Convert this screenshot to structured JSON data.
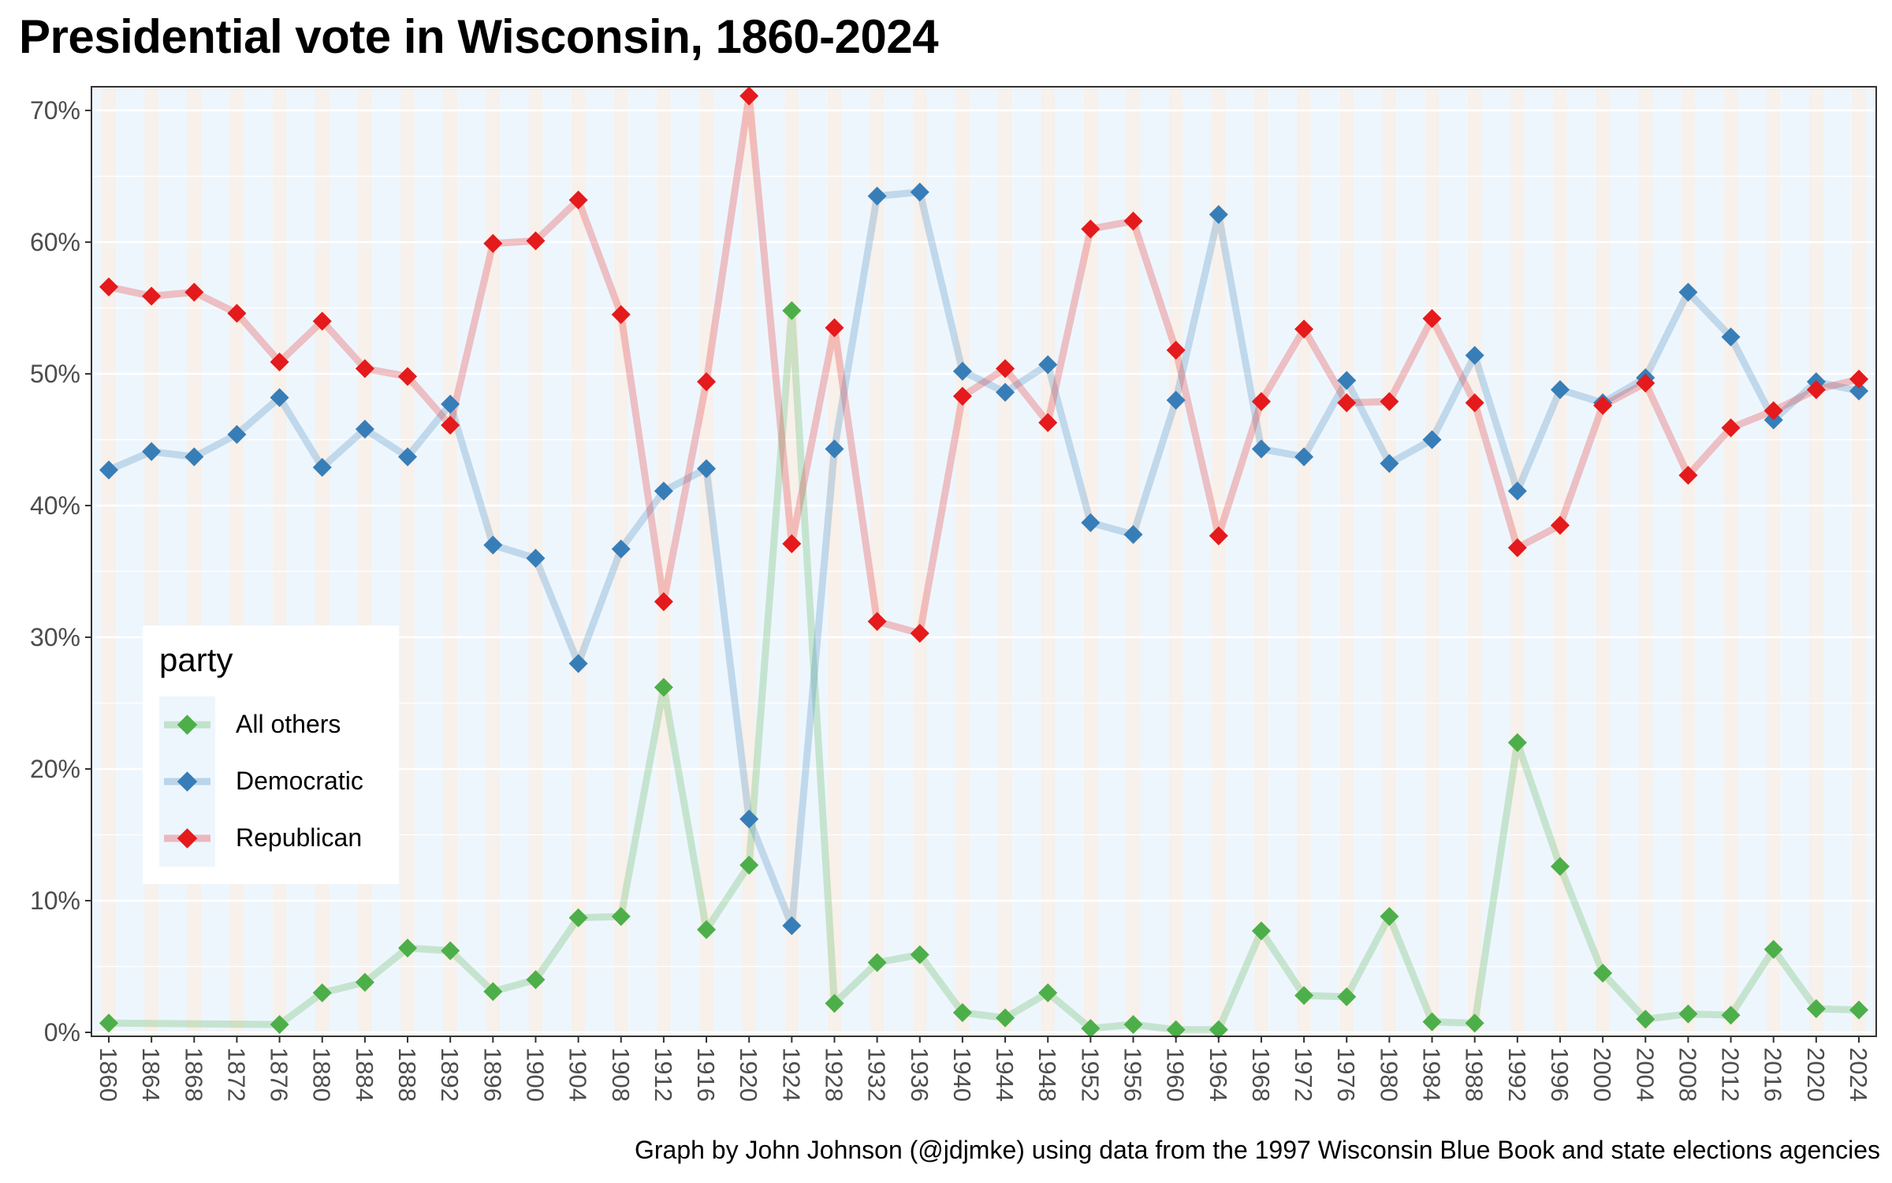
{
  "chart_data": {
    "type": "line",
    "title": "Presidential vote in Wisconsin, 1860-2024",
    "caption": "Graph by John Johnson (@jdjmke) using data from the 1997 Wisconsin Blue Book and state elections agencies",
    "xlabel": "",
    "ylabel": "",
    "x": [
      1860,
      1864,
      1868,
      1872,
      1876,
      1880,
      1884,
      1888,
      1892,
      1896,
      1900,
      1904,
      1908,
      1912,
      1916,
      1920,
      1924,
      1928,
      1932,
      1936,
      1940,
      1944,
      1948,
      1952,
      1956,
      1960,
      1964,
      1968,
      1972,
      1976,
      1980,
      1984,
      1988,
      1992,
      1996,
      2000,
      2004,
      2008,
      2012,
      2016,
      2020,
      2024
    ],
    "x_ticks": [
      "1860",
      "1864",
      "1868",
      "1872",
      "1876",
      "1880",
      "1884",
      "1888",
      "1892",
      "1896",
      "1900",
      "1904",
      "1908",
      "1912",
      "1916",
      "1920",
      "1924",
      "1928",
      "1932",
      "1936",
      "1940",
      "1944",
      "1948",
      "1952",
      "1956",
      "1960",
      "1964",
      "1968",
      "1972",
      "1976",
      "1980",
      "1984",
      "1988",
      "1992",
      "1996",
      "2000",
      "2004",
      "2008",
      "2012",
      "2016",
      "2020",
      "2024"
    ],
    "y_ticks": [
      "0%",
      "10%",
      "20%",
      "30%",
      "40%",
      "50%",
      "60%",
      "70%"
    ],
    "ylim": [
      0,
      71.2
    ],
    "grid": true,
    "legend": {
      "title": "party",
      "placement": "bottom-left"
    },
    "series": [
      {
        "name": "All others",
        "color": "#4daf4a",
        "points": [
          [
            1860,
            0.7
          ],
          [
            1876,
            0.6
          ],
          [
            1880,
            3.0
          ],
          [
            1884,
            3.8
          ],
          [
            1888,
            6.4
          ],
          [
            1892,
            6.2
          ],
          [
            1896,
            3.1
          ],
          [
            1900,
            4.0
          ],
          [
            1904,
            8.7
          ],
          [
            1908,
            8.8
          ],
          [
            1912,
            26.2
          ],
          [
            1916,
            7.8
          ],
          [
            1920,
            12.7
          ],
          [
            1924,
            54.8
          ],
          [
            1928,
            2.2
          ],
          [
            1932,
            5.3
          ],
          [
            1936,
            5.9
          ],
          [
            1940,
            1.5
          ],
          [
            1944,
            1.1
          ],
          [
            1948,
            3.0
          ],
          [
            1952,
            0.3
          ],
          [
            1956,
            0.6
          ],
          [
            1960,
            0.2
          ],
          [
            1964,
            0.2
          ],
          [
            1968,
            7.7
          ],
          [
            1972,
            2.8
          ],
          [
            1976,
            2.7
          ],
          [
            1980,
            8.8
          ],
          [
            1984,
            0.8
          ],
          [
            1988,
            0.7
          ],
          [
            1992,
            22.0
          ],
          [
            1996,
            12.6
          ],
          [
            2000,
            4.5
          ],
          [
            2004,
            1.0
          ],
          [
            2008,
            1.4
          ],
          [
            2012,
            1.3
          ],
          [
            2016,
            6.3
          ],
          [
            2020,
            1.8
          ],
          [
            2024,
            1.7
          ]
        ]
      },
      {
        "name": "Democratic",
        "color": "#377eb8",
        "points": [
          [
            1860,
            42.7
          ],
          [
            1864,
            44.1
          ],
          [
            1868,
            43.7
          ],
          [
            1872,
            45.4
          ],
          [
            1876,
            48.2
          ],
          [
            1880,
            42.9
          ],
          [
            1884,
            45.8
          ],
          [
            1888,
            43.7
          ],
          [
            1892,
            47.7
          ],
          [
            1896,
            37.0
          ],
          [
            1900,
            36.0
          ],
          [
            1904,
            28.0
          ],
          [
            1908,
            36.7
          ],
          [
            1912,
            41.1
          ],
          [
            1916,
            42.8
          ],
          [
            1920,
            16.2
          ],
          [
            1924,
            8.1
          ],
          [
            1928,
            44.3
          ],
          [
            1932,
            63.5
          ],
          [
            1936,
            63.8
          ],
          [
            1940,
            50.2
          ],
          [
            1944,
            48.6
          ],
          [
            1948,
            50.7
          ],
          [
            1952,
            38.7
          ],
          [
            1956,
            37.8
          ],
          [
            1960,
            48.0
          ],
          [
            1964,
            62.1
          ],
          [
            1968,
            44.3
          ],
          [
            1972,
            43.7
          ],
          [
            1976,
            49.5
          ],
          [
            1980,
            43.2
          ],
          [
            1984,
            45.0
          ],
          [
            1988,
            51.4
          ],
          [
            1992,
            41.1
          ],
          [
            1996,
            48.8
          ],
          [
            2000,
            47.8
          ],
          [
            2004,
            49.7
          ],
          [
            2008,
            56.2
          ],
          [
            2012,
            52.8
          ],
          [
            2016,
            46.5
          ],
          [
            2020,
            49.4
          ],
          [
            2024,
            48.7
          ]
        ]
      },
      {
        "name": "Republican",
        "color": "#e41a1c",
        "points": [
          [
            1860,
            56.6
          ],
          [
            1864,
            55.9
          ],
          [
            1868,
            56.2
          ],
          [
            1872,
            54.6
          ],
          [
            1876,
            50.9
          ],
          [
            1880,
            54.0
          ],
          [
            1884,
            50.4
          ],
          [
            1888,
            49.8
          ],
          [
            1892,
            46.1
          ],
          [
            1896,
            59.9
          ],
          [
            1900,
            60.1
          ],
          [
            1904,
            63.2
          ],
          [
            1908,
            54.5
          ],
          [
            1912,
            32.7
          ],
          [
            1916,
            49.4
          ],
          [
            1920,
            71.1
          ],
          [
            1924,
            37.1
          ],
          [
            1928,
            53.5
          ],
          [
            1932,
            31.2
          ],
          [
            1936,
            30.3
          ],
          [
            1940,
            48.3
          ],
          [
            1944,
            50.4
          ],
          [
            1948,
            46.3
          ],
          [
            1952,
            61.0
          ],
          [
            1956,
            61.6
          ],
          [
            1960,
            51.8
          ],
          [
            1964,
            37.7
          ],
          [
            1968,
            47.9
          ],
          [
            1972,
            53.4
          ],
          [
            1976,
            47.8
          ],
          [
            1980,
            47.9
          ],
          [
            1984,
            54.2
          ],
          [
            1988,
            47.8
          ],
          [
            1992,
            36.8
          ],
          [
            1996,
            38.5
          ],
          [
            2000,
            47.6
          ],
          [
            2004,
            49.3
          ],
          [
            2008,
            42.3
          ],
          [
            2012,
            45.9
          ],
          [
            2016,
            47.2
          ],
          [
            2020,
            48.8
          ],
          [
            2024,
            49.6
          ]
        ]
      }
    ]
  }
}
